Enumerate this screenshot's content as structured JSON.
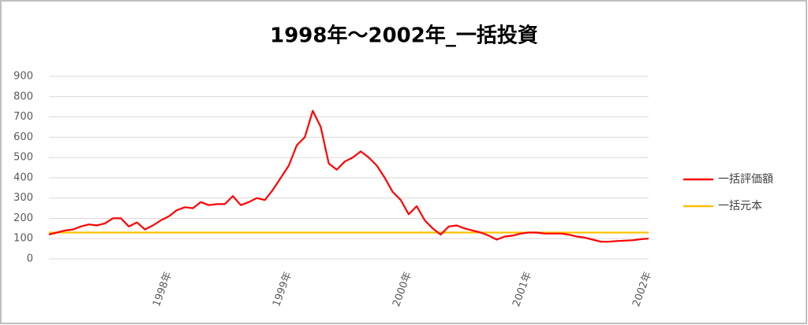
{
  "chart_data": {
    "type": "line",
    "title": "1998年～2002年_一括投資",
    "categories": [
      null,
      null,
      null,
      null,
      null,
      null,
      null,
      null,
      null,
      null,
      null,
      null,
      null,
      null,
      null,
      "1998年",
      null,
      null,
      null,
      null,
      null,
      null,
      null,
      null,
      null,
      null,
      null,
      null,
      null,
      null,
      "1999年",
      null,
      null,
      null,
      null,
      null,
      null,
      null,
      null,
      null,
      null,
      null,
      null,
      null,
      null,
      "2000年",
      null,
      null,
      null,
      null,
      null,
      null,
      null,
      null,
      null,
      null,
      null,
      null,
      null,
      null,
      "2001年",
      null,
      null,
      null,
      null,
      null,
      null,
      null,
      null,
      null,
      null,
      null,
      null,
      null,
      null,
      "2002年"
    ],
    "series": [
      {
        "name": "一括評価額",
        "color": "#ff0000",
        "values": [
          120,
          130,
          140,
          145,
          160,
          170,
          165,
          175,
          200,
          200,
          160,
          180,
          145,
          165,
          190,
          210,
          240,
          255,
          250,
          280,
          265,
          270,
          270,
          310,
          265,
          280,
          300,
          290,
          340,
          400,
          460,
          560,
          600,
          730,
          650,
          470,
          440,
          480,
          500,
          530,
          500,
          460,
          400,
          330,
          290,
          220,
          260,
          190,
          150,
          120,
          160,
          165,
          150,
          140,
          130,
          115,
          95,
          110,
          115,
          125,
          130,
          130,
          125,
          125,
          125,
          120,
          110,
          105,
          95,
          85,
          85,
          88,
          90,
          92,
          97,
          100
        ]
      },
      {
        "name": "一括元本",
        "color": "#ffc000",
        "values": [
          130,
          130,
          130,
          130,
          130,
          130,
          130,
          130,
          130,
          130,
          130,
          130,
          130,
          130,
          130,
          130,
          130,
          130,
          130,
          130,
          130,
          130,
          130,
          130,
          130,
          130,
          130,
          130,
          130,
          130,
          130,
          130,
          130,
          130,
          130,
          130,
          130,
          130,
          130,
          130,
          130,
          130,
          130,
          130,
          130,
          130,
          130,
          130,
          130,
          130,
          130,
          130,
          130,
          130,
          130,
          130,
          130,
          130,
          130,
          130,
          130,
          130,
          130,
          130,
          130,
          130,
          130,
          130,
          130,
          130,
          130,
          130,
          130,
          130,
          130,
          130
        ]
      }
    ],
    "ylim": [
      0,
      900
    ],
    "yticks": [
      0,
      100,
      200,
      300,
      400,
      500,
      600,
      700,
      800,
      900
    ],
    "grid": true,
    "legend": "right"
  }
}
